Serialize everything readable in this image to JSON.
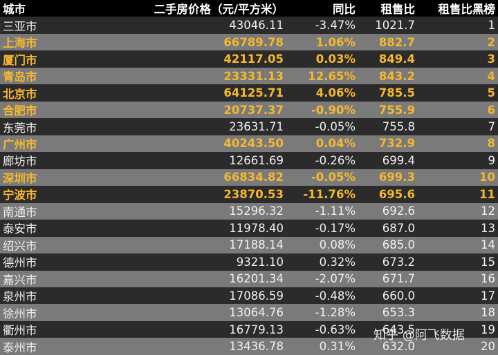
{
  "headers": {
    "city": "城市",
    "price": "二手房价格（元/平方米）",
    "yoy": "同比",
    "ratio": "租售比",
    "rank": "租售比黑榜"
  },
  "rows": [
    {
      "city": "三亚市",
      "price": "43046.11",
      "yoy": "-3.47%",
      "ratio": "1021.7",
      "rank": "1",
      "highlight": false
    },
    {
      "city": "上海市",
      "price": "66789.78",
      "yoy": "1.06%",
      "ratio": "882.7",
      "rank": "2",
      "highlight": true
    },
    {
      "city": "厦门市",
      "price": "42117.05",
      "yoy": "0.03%",
      "ratio": "849.4",
      "rank": "3",
      "highlight": true
    },
    {
      "city": "青岛市",
      "price": "23331.13",
      "yoy": "12.65%",
      "ratio": "843.2",
      "rank": "4",
      "highlight": true
    },
    {
      "city": "北京市",
      "price": "64125.71",
      "yoy": "4.06%",
      "ratio": "785.5",
      "rank": "5",
      "highlight": true
    },
    {
      "city": "合肥市",
      "price": "20737.37",
      "yoy": "-0.90%",
      "ratio": "755.9",
      "rank": "6",
      "highlight": true
    },
    {
      "city": "东莞市",
      "price": "23631.71",
      "yoy": "-0.05%",
      "ratio": "755.8",
      "rank": "7",
      "highlight": false
    },
    {
      "city": "广州市",
      "price": "40243.50",
      "yoy": "0.04%",
      "ratio": "732.9",
      "rank": "8",
      "highlight": true
    },
    {
      "city": "廊坊市",
      "price": "12661.69",
      "yoy": "-0.26%",
      "ratio": "699.4",
      "rank": "9",
      "highlight": false
    },
    {
      "city": "深圳市",
      "price": "66834.82",
      "yoy": "-0.05%",
      "ratio": "699.3",
      "rank": "10",
      "highlight": true
    },
    {
      "city": "宁波市",
      "price": "23870.53",
      "yoy": "-11.76%",
      "ratio": "695.6",
      "rank": "11",
      "highlight": true
    },
    {
      "city": "南通市",
      "price": "15296.32",
      "yoy": "-1.11%",
      "ratio": "692.6",
      "rank": "12",
      "highlight": false
    },
    {
      "city": "泰安市",
      "price": "11978.40",
      "yoy": "-0.17%",
      "ratio": "687.0",
      "rank": "13",
      "highlight": false
    },
    {
      "city": "绍兴市",
      "price": "17188.14",
      "yoy": "0.08%",
      "ratio": "685.0",
      "rank": "14",
      "highlight": false
    },
    {
      "city": "德州市",
      "price": "9321.10",
      "yoy": "0.32%",
      "ratio": "673.2",
      "rank": "15",
      "highlight": false
    },
    {
      "city": "嘉兴市",
      "price": "16201.34",
      "yoy": "-2.07%",
      "ratio": "671.7",
      "rank": "16",
      "highlight": false
    },
    {
      "city": "泉州市",
      "price": "17086.59",
      "yoy": "-0.48%",
      "ratio": "660.0",
      "rank": "17",
      "highlight": false
    },
    {
      "city": "徐州市",
      "price": "13064.76",
      "yoy": "-1.28%",
      "ratio": "653.3",
      "rank": "18",
      "highlight": false
    },
    {
      "city": "衢州市",
      "price": "16779.13",
      "yoy": "-0.63%",
      "ratio": "643.5",
      "rank": "19",
      "highlight": false
    },
    {
      "city": "泰州市",
      "price": "13436.78",
      "yoy": "0.31%",
      "ratio": "632.0",
      "rank": "20",
      "highlight": false
    }
  ],
  "watermark": "知乎 @阿飞数据",
  "colors": {
    "highlight": "#f5b82e",
    "row_dark": "#2b2b2b",
    "row_light": "#7a7a7a",
    "header": "#000000"
  }
}
